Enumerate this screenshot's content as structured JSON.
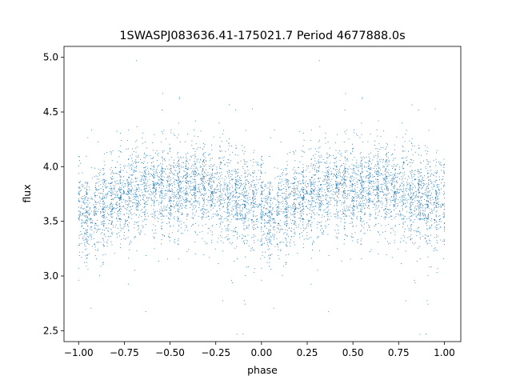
{
  "chart_data": {
    "type": "scatter",
    "title": "1SWASPJ083636.41-175021.7 Period 4677888.0s",
    "xlabel": "phase",
    "ylabel": "flux",
    "xlim": [
      -1.08,
      1.09
    ],
    "ylim": [
      2.4,
      5.1
    ],
    "x_ticks": [
      -1.0,
      -0.75,
      -0.5,
      -0.25,
      0.0,
      0.25,
      0.5,
      0.75,
      1.0
    ],
    "x_tick_labels": [
      "−1.00",
      "−0.75",
      "−0.50",
      "−0.25",
      "0.00",
      "0.25",
      "0.50",
      "0.75",
      "1.00"
    ],
    "y_ticks": [
      2.5,
      3.0,
      3.5,
      4.0,
      4.5,
      5.0
    ],
    "y_tick_labels": [
      "2.5",
      "3.0",
      "3.5",
      "4.0",
      "4.5",
      "5.0"
    ],
    "grid": false,
    "marker_color": "#1f77b4",
    "profile": {
      "phase": [
        0.0,
        0.05,
        0.1,
        0.15,
        0.2,
        0.25,
        0.3,
        0.35,
        0.4,
        0.45,
        0.5,
        0.55,
        0.6,
        0.65,
        0.7,
        0.75,
        0.8,
        0.85,
        0.9,
        0.95,
        1.0
      ],
      "flux": [
        3.65,
        3.55,
        3.6,
        3.62,
        3.7,
        3.72,
        3.75,
        3.8,
        3.82,
        3.8,
        3.75,
        3.78,
        3.82,
        3.83,
        3.8,
        3.78,
        3.75,
        3.72,
        3.68,
        3.66,
        3.65
      ]
    }
  }
}
